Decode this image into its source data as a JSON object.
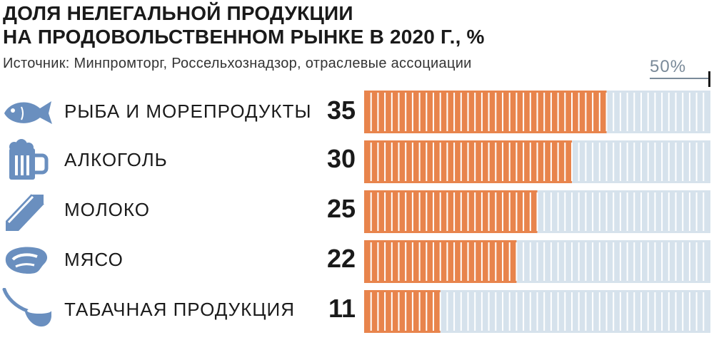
{
  "title_line1": "ДОЛЯ НЕЛЕГАЛЬНОЙ ПРОДУКЦИИ",
  "title_line2": "НА ПРОДОВОЛЬСТВЕННОМ РЫНКЕ В 2020 Г., %",
  "source": "Источник: Минпромторг, Россельхознадзор, отраслевые ассоциации",
  "scale_label": "50%",
  "colors": {
    "filled": "#e8844c",
    "empty": "#d6e2ec",
    "divider": "#ffffff",
    "icon": "#6a8fbf"
  },
  "chart_data": {
    "type": "bar",
    "orientation": "horizontal",
    "title": "ДОЛЯ НЕЛЕГАЛЬНОЙ ПРОДУКЦИИ НА ПРОДОВОЛЬСТВЕННОМ РЫНКЕ В 2020 Г., %",
    "categories": [
      "РЫБА И МОРЕПРОДУКТЫ",
      "АЛКОГОЛЬ",
      "МОЛОКО",
      "МЯСО",
      "ТАБАЧНАЯ ПРОДУКЦИЯ"
    ],
    "values": [
      35,
      30,
      25,
      22,
      11
    ],
    "icons": [
      "fish-icon",
      "beer-mug-icon",
      "milk-carton-icon",
      "steak-icon",
      "pipe-icon"
    ],
    "xlim": [
      0,
      50
    ],
    "grid": true
  }
}
